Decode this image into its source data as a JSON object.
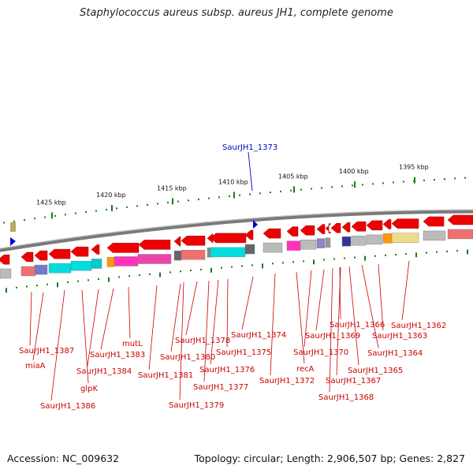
{
  "title": "Staphylococcus aureus subsp. aureus JH1, complete genome",
  "accession": "Accession: NC_009632",
  "topology": "Topology: circular; Length: 2,906,507 bp; Genes: 2,827",
  "highlight": "SaurJH1_1373",
  "colors": {
    "gene": "#ee0000",
    "leader": "#cc0000",
    "highlight": "#0000cc",
    "tick": "#1a7a1a"
  },
  "ticks": [
    "1425 kbp",
    "1420 kbp",
    "1415 kbp",
    "1410 kbp",
    "1405 kbp",
    "1400 kbp",
    "1395 kbp"
  ],
  "genes": [
    "SaurJH1_1387",
    "miaA",
    "SaurJH1_1386",
    "glpK",
    "SaurJH1_1384",
    "SaurJH1_1383",
    "mutL",
    "SaurJH1_1381",
    "SaurJH1_1380",
    "SaurJH1_1379",
    "SaurJH1_1378",
    "SaurJH1_1377",
    "SaurJH1_1376",
    "SaurJH1_1375",
    "SaurJH1_1374",
    "SaurJH1_1372",
    "recA",
    "SaurJH1_1370",
    "SaurJH1_1369",
    "SaurJH1_1368",
    "SaurJH1_1367",
    "SaurJH1_1366",
    "SaurJH1_1365",
    "SaurJH1_1364",
    "SaurJH1_1363",
    "SaurJH1_1362"
  ]
}
